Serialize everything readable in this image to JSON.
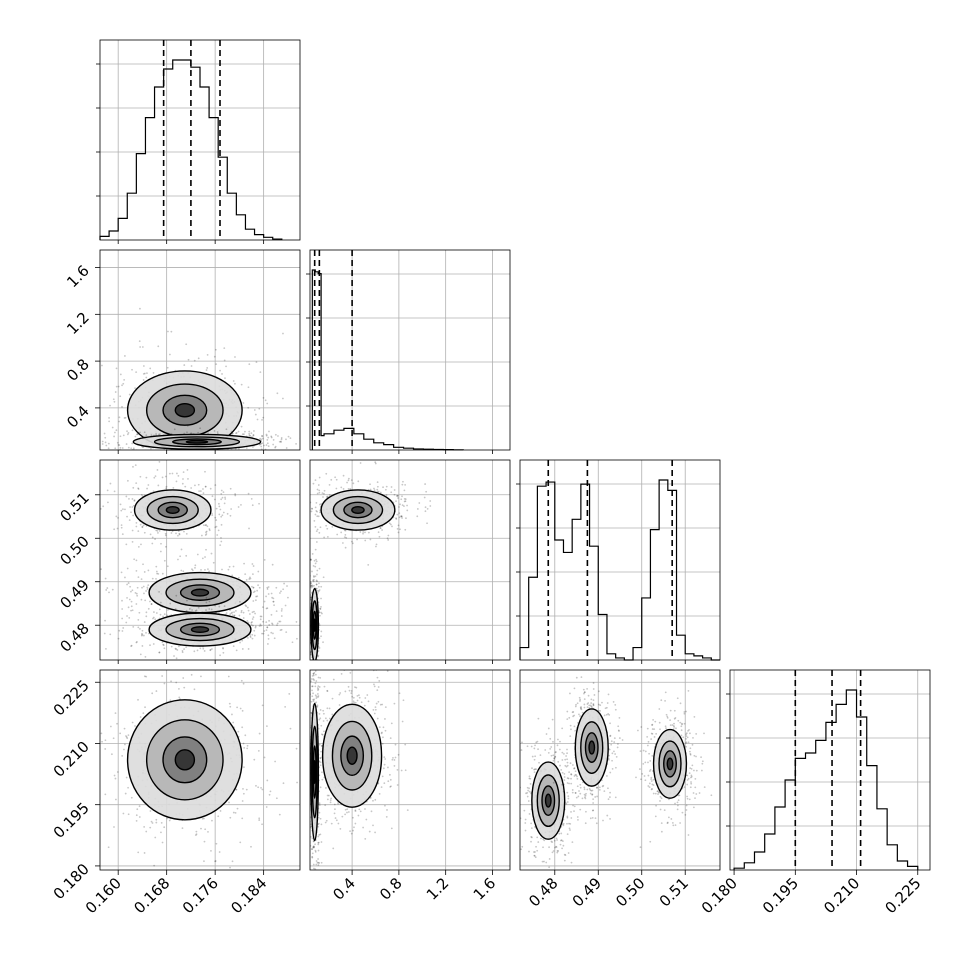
{
  "chart_data": {
    "type": "corner",
    "title": "",
    "grid": true,
    "params": [
      {
        "range": [
          0.157,
          0.19
        ],
        "ticks": [
          "0.160",
          "0.168",
          "0.176",
          "0.184"
        ]
      },
      {
        "range": [
          0.04,
          1.75
        ],
        "ticks": [
          "0.4",
          "0.8",
          "1.2",
          "1.6"
        ]
      },
      {
        "range": [
          0.472,
          0.518
        ],
        "ticks": [
          "0.48",
          "0.49",
          "0.50",
          "0.51"
        ]
      },
      {
        "range": [
          0.179,
          0.228
        ],
        "ticks": [
          "0.180",
          "0.195",
          "0.210",
          "0.225"
        ]
      }
    ],
    "histograms": [
      {
        "param": 0,
        "bin_edges": [
          0.157,
          0.1585,
          0.16,
          0.1615,
          0.163,
          0.1645,
          0.166,
          0.1675,
          0.169,
          0.1705,
          0.172,
          0.1735,
          0.175,
          0.1765,
          0.178,
          0.1795,
          0.181,
          0.1825,
          0.184,
          0.1855,
          0.187
        ],
        "counts": [
          0.02,
          0.05,
          0.12,
          0.26,
          0.48,
          0.68,
          0.85,
          0.95,
          1.0,
          1.0,
          0.96,
          0.85,
          0.68,
          0.46,
          0.26,
          0.14,
          0.06,
          0.03,
          0.015,
          0.005
        ],
        "quantiles": [
          0.1675,
          0.172,
          0.1768
        ]
      },
      {
        "param": 1,
        "bin_edges": [
          0.06,
          0.085,
          0.11,
          0.135,
          0.16,
          0.245,
          0.33,
          0.415,
          0.5,
          0.585,
          0.67,
          0.755,
          0.84,
          0.925,
          1.01,
          1.095,
          1.18,
          1.265,
          1.35
        ],
        "counts": [
          1.0,
          0.99,
          0.98,
          0.08,
          0.09,
          0.11,
          0.12,
          0.09,
          0.06,
          0.04,
          0.03,
          0.015,
          0.01,
          0.006,
          0.004,
          0.003,
          0.002,
          0.001
        ],
        "quantiles": [
          0.08,
          0.12,
          0.4
        ]
      },
      {
        "param": 2,
        "bin_edges": [
          0.472,
          0.474,
          0.476,
          0.478,
          0.48,
          0.482,
          0.484,
          0.486,
          0.488,
          0.49,
          0.492,
          0.494,
          0.496,
          0.498,
          0.5,
          0.502,
          0.504,
          0.506,
          0.508,
          0.51,
          0.512,
          0.514,
          0.516,
          0.518
        ],
        "counts": [
          0.06,
          0.4,
          0.84,
          0.86,
          0.58,
          0.52,
          0.68,
          0.85,
          0.55,
          0.22,
          0.03,
          0.01,
          0.0,
          0.06,
          0.3,
          0.63,
          0.87,
          0.82,
          0.12,
          0.03,
          0.02,
          0.01,
          0.0
        ],
        "quantiles": [
          0.4785,
          0.4875,
          0.507
        ]
      },
      {
        "param": 3,
        "bin_edges": [
          0.18,
          0.1825,
          0.185,
          0.1875,
          0.19,
          0.1925,
          0.195,
          0.1975,
          0.2,
          0.2025,
          0.205,
          0.2075,
          0.21,
          0.2125,
          0.215,
          0.2175,
          0.22,
          0.2225,
          0.225
        ],
        "counts": [
          0.01,
          0.04,
          0.1,
          0.2,
          0.35,
          0.5,
          0.62,
          0.65,
          0.72,
          0.82,
          0.92,
          1.0,
          0.85,
          0.58,
          0.34,
          0.14,
          0.05,
          0.02
        ],
        "quantiles": [
          0.195,
          0.204,
          0.211
        ]
      }
    ],
    "scatter_panels": [
      {
        "x_param": 0,
        "y_param": 1,
        "clusters": [
          {
            "cx": 0.171,
            "cy": 0.38,
            "sx": 0.0045,
            "sy": 0.16
          },
          {
            "cx": 0.173,
            "cy": 0.11,
            "sx": 0.005,
            "sy": 0.03
          }
        ]
      },
      {
        "x_param": 0,
        "y_param": 2,
        "clusters": [
          {
            "cx": 0.169,
            "cy": 0.5065,
            "sx": 0.003,
            "sy": 0.0022
          },
          {
            "cx": 0.1735,
            "cy": 0.4875,
            "sx": 0.004,
            "sy": 0.0022
          },
          {
            "cx": 0.1735,
            "cy": 0.479,
            "sx": 0.004,
            "sy": 0.0018
          }
        ]
      },
      {
        "x_param": 1,
        "y_param": 2,
        "clusters": [
          {
            "cx": 0.45,
            "cy": 0.5065,
            "sx": 0.15,
            "sy": 0.0022
          },
          {
            "cx": 0.08,
            "cy": 0.48,
            "sx": 0.015,
            "sy": 0.004
          }
        ]
      },
      {
        "x_param": 0,
        "y_param": 3,
        "clusters": [
          {
            "cx": 0.171,
            "cy": 0.206,
            "sx": 0.0045,
            "sy": 0.007
          }
        ]
      },
      {
        "x_param": 1,
        "y_param": 3,
        "clusters": [
          {
            "cx": 0.4,
            "cy": 0.207,
            "sx": 0.12,
            "sy": 0.006
          },
          {
            "cx": 0.08,
            "cy": 0.203,
            "sx": 0.015,
            "sy": 0.008
          }
        ]
      },
      {
        "x_param": 2,
        "y_param": 3,
        "clusters": [
          {
            "cx": 0.4785,
            "cy": 0.196,
            "sx": 0.0018,
            "sy": 0.0045
          },
          {
            "cx": 0.4885,
            "cy": 0.209,
            "sx": 0.0018,
            "sy": 0.0045
          },
          {
            "cx": 0.5065,
            "cy": 0.205,
            "sx": 0.0018,
            "sy": 0.004
          }
        ]
      }
    ]
  }
}
